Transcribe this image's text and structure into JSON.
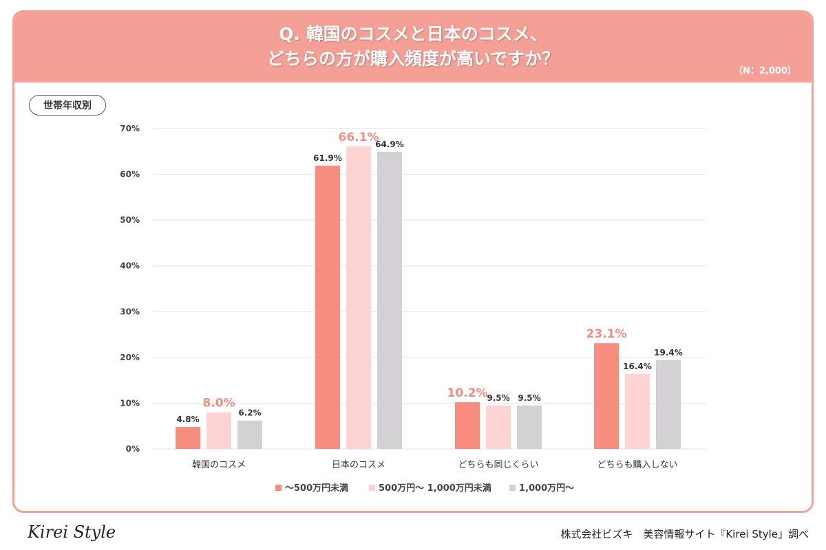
{
  "header": {
    "title_line1": "Q. 韓国のコスメと日本のコスメ、",
    "title_line2": "どちらの方が購入頻度が高いですか？",
    "sample": "（N：2,000）"
  },
  "filter_tag": "世帯年収別",
  "footer": {
    "logo": "Kirei Style",
    "credit": "株式会社ビズキ　美容情報サイト『Kirei Style』調べ"
  },
  "colors": {
    "s1": "#f78d7f",
    "s2": "#fdd3d3",
    "s3": "#d4d1d4",
    "highlight": "#f08c84",
    "header": "#f5a096"
  },
  "chart_data": {
    "type": "bar",
    "categories": [
      "韓国のコスメ",
      "日本のコスメ",
      "どちらも同じくらい",
      "どちらも購入しない"
    ],
    "series": [
      {
        "name": "〜500万円未満",
        "values": [
          4.8,
          61.9,
          10.2,
          23.1
        ]
      },
      {
        "name": "500万円〜 1,000万円未満",
        "values": [
          8.0,
          66.1,
          9.5,
          16.4
        ]
      },
      {
        "name": "1,000万円〜",
        "values": [
          6.2,
          64.9,
          9.5,
          19.4
        ]
      }
    ],
    "labels": [
      [
        "4.8%",
        "61.9%",
        "10.2%",
        "23.1%"
      ],
      [
        "8.0%",
        "66.1%",
        "9.5%",
        "16.4%"
      ],
      [
        "6.2%",
        "64.9%",
        "9.5%",
        "19.4%"
      ]
    ],
    "highlighted_series_by_category": [
      1,
      1,
      0,
      0
    ],
    "yticks": [
      "0%",
      "10%",
      "20%",
      "30%",
      "40%",
      "50%",
      "60%",
      "70%"
    ],
    "ylim": [
      0,
      70
    ],
    "grid": true,
    "legend_position": "bottom"
  }
}
